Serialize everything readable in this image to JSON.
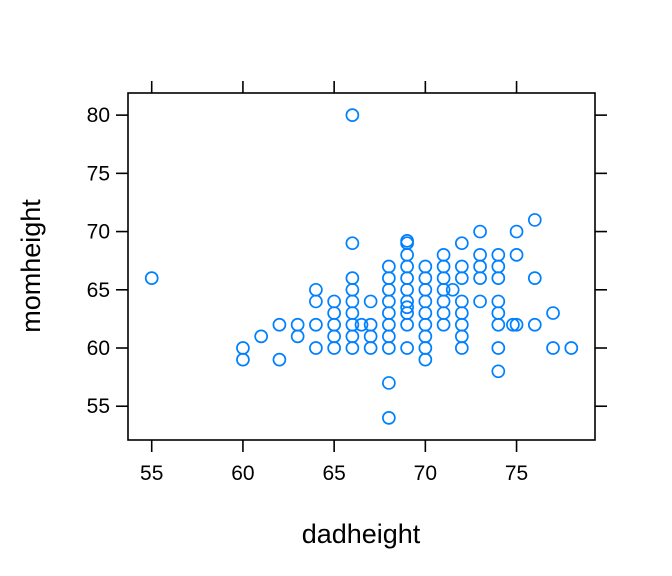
{
  "chart_data": {
    "type": "scatter",
    "title": "",
    "xlabel": "dadheight",
    "ylabel": "momheight",
    "xlim": [
      53.7,
      79.3
    ],
    "ylim": [
      52.1,
      81.9
    ],
    "xticks": [
      55,
      60,
      65,
      70,
      75
    ],
    "yticks": [
      55,
      60,
      65,
      70,
      75,
      80
    ],
    "xtick_labels": [
      "55",
      "60",
      "65",
      "70",
      "75"
    ],
    "ytick_labels": [
      "55",
      "60",
      "65",
      "70",
      "75",
      "80"
    ],
    "grid": false,
    "point_color": "#0080ff",
    "marker": "open-circle",
    "points": [
      [
        55,
        66
      ],
      [
        60,
        60
      ],
      [
        60,
        59
      ],
      [
        61,
        61
      ],
      [
        62,
        62
      ],
      [
        62,
        59
      ],
      [
        63,
        62
      ],
      [
        63,
        61
      ],
      [
        64,
        65
      ],
      [
        64,
        64
      ],
      [
        64,
        62
      ],
      [
        64,
        60
      ],
      [
        65,
        64
      ],
      [
        65,
        63
      ],
      [
        65,
        62
      ],
      [
        65,
        61
      ],
      [
        65,
        60
      ],
      [
        66,
        80
      ],
      [
        66,
        69
      ],
      [
        66,
        66
      ],
      [
        66,
        65
      ],
      [
        66,
        64
      ],
      [
        66,
        63
      ],
      [
        66,
        62
      ],
      [
        66,
        61
      ],
      [
        66,
        60
      ],
      [
        66.5,
        62
      ],
      [
        67,
        64
      ],
      [
        67,
        62
      ],
      [
        67,
        61
      ],
      [
        67,
        60
      ],
      [
        68,
        67
      ],
      [
        68,
        66
      ],
      [
        68,
        65
      ],
      [
        68,
        64
      ],
      [
        68,
        63
      ],
      [
        68,
        62
      ],
      [
        68,
        61
      ],
      [
        68,
        60
      ],
      [
        68,
        57
      ],
      [
        68,
        54
      ],
      [
        69,
        69.2
      ],
      [
        69,
        69
      ],
      [
        69,
        68
      ],
      [
        69,
        67
      ],
      [
        69,
        66
      ],
      [
        69,
        65
      ],
      [
        69,
        64
      ],
      [
        69,
        63.5
      ],
      [
        69,
        63
      ],
      [
        69,
        62
      ],
      [
        69,
        60
      ],
      [
        70,
        67
      ],
      [
        70,
        66
      ],
      [
        70,
        65
      ],
      [
        70,
        64
      ],
      [
        70,
        63
      ],
      [
        70,
        62
      ],
      [
        70,
        61
      ],
      [
        70,
        60
      ],
      [
        70,
        59
      ],
      [
        71,
        68
      ],
      [
        71,
        67
      ],
      [
        71,
        66
      ],
      [
        71,
        65
      ],
      [
        71,
        64
      ],
      [
        71,
        63
      ],
      [
        71,
        62
      ],
      [
        71.5,
        65
      ],
      [
        72,
        69
      ],
      [
        72,
        67
      ],
      [
        72,
        66
      ],
      [
        72,
        64
      ],
      [
        72,
        63
      ],
      [
        72,
        62
      ],
      [
        72,
        61
      ],
      [
        72,
        60
      ],
      [
        73,
        70
      ],
      [
        73,
        68
      ],
      [
        73,
        67
      ],
      [
        73,
        66
      ],
      [
        73,
        64
      ],
      [
        74,
        68
      ],
      [
        74,
        67
      ],
      [
        74,
        66
      ],
      [
        74,
        64
      ],
      [
        74,
        63
      ],
      [
        74,
        62
      ],
      [
        74,
        60
      ],
      [
        74,
        58
      ],
      [
        74.8,
        62
      ],
      [
        75,
        70
      ],
      [
        75,
        68
      ],
      [
        75,
        62
      ],
      [
        76,
        71
      ],
      [
        76,
        66
      ],
      [
        76,
        62
      ],
      [
        77,
        63
      ],
      [
        77,
        60
      ],
      [
        78,
        60
      ]
    ]
  }
}
